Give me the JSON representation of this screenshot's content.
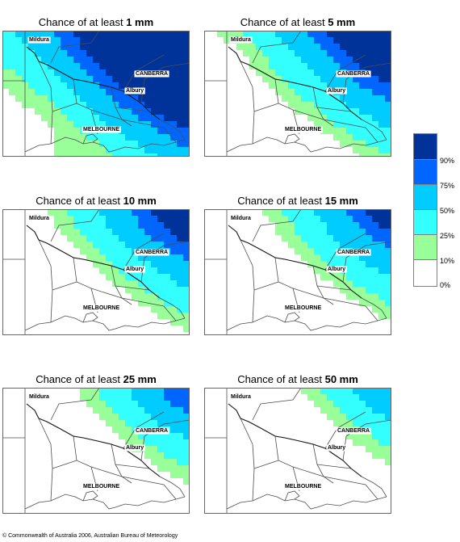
{
  "title_prefix": "Chance of at least",
  "panels": [
    {
      "amount": "1 mm",
      "level": 1
    },
    {
      "amount": "5 mm",
      "level": 5
    },
    {
      "amount": "10 mm",
      "level": 10
    },
    {
      "amount": "15 mm",
      "level": 15
    },
    {
      "amount": "25 mm",
      "level": 25
    },
    {
      "amount": "50 mm",
      "level": 50
    }
  ],
  "cities": {
    "mildura": "Mildura",
    "canberra": "CANBERRA",
    "albury": "Albury",
    "melbourne": "MELBOURNE"
  },
  "legend": {
    "labels": [
      "90%",
      "75%",
      "50%",
      "25%",
      "10%",
      "0%"
    ],
    "colors": [
      "#003399",
      "#0066ff",
      "#00ccff",
      "#33ffff",
      "#99ff99",
      "#ffffff"
    ]
  },
  "copyright": "© Commonwealth of Australia 2006, Australian Bureau of Meteorology"
}
